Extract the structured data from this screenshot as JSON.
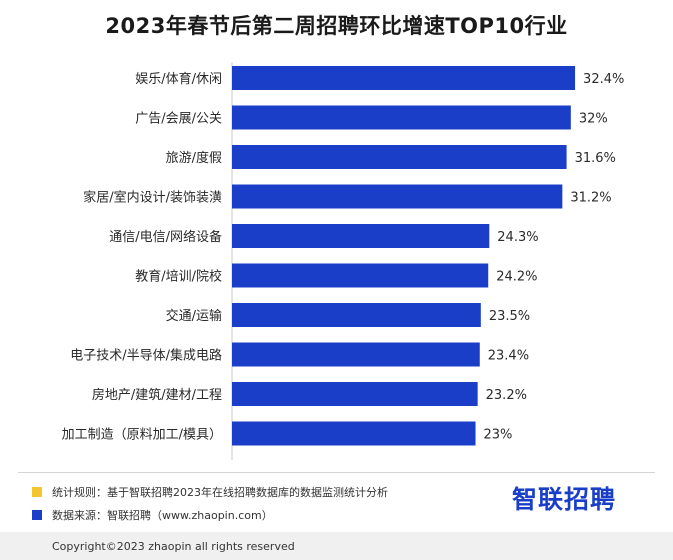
{
  "colors": {
    "bar": "#1a3ec8",
    "rule_swatch": "#f3c530",
    "source_swatch": "#1a3ec8",
    "logo": "#1a3ec8"
  },
  "footer": {
    "rule_text": "统计规则：基于智联招聘2023年在线招聘数据库的数据监测统计分析",
    "source_text": "数据来源：智联招聘（www.zhaopin.com）",
    "logo_text": "智联招聘",
    "copyright": "Copyright©2023 zhaopin all rights reserved"
  },
  "chart_data": {
    "type": "bar",
    "orientation": "horizontal",
    "title": "2023年春节后第二周招聘环比增速TOP10行业",
    "categories": [
      "娱乐/体育/休闲",
      "广告/会展/公关",
      "旅游/度假",
      "家居/室内设计/装饰装潢",
      "通信/电信/网络设备",
      "教育/培训/院校",
      "交通/运输",
      "电子技术/半导体/集成电路",
      "房地产/建筑/建材/工程",
      "加工制造（原料加工/模具）"
    ],
    "values": [
      32.4,
      32,
      31.6,
      31.2,
      24.3,
      24.2,
      23.5,
      23.4,
      23.2,
      23
    ],
    "value_labels": [
      "32.4%",
      "32%",
      "31.6%",
      "31.2%",
      "24.3%",
      "24.2%",
      "23.5%",
      "23.4%",
      "23.2%",
      "23%"
    ],
    "xlim": [
      0,
      34
    ],
    "grid": false
  }
}
